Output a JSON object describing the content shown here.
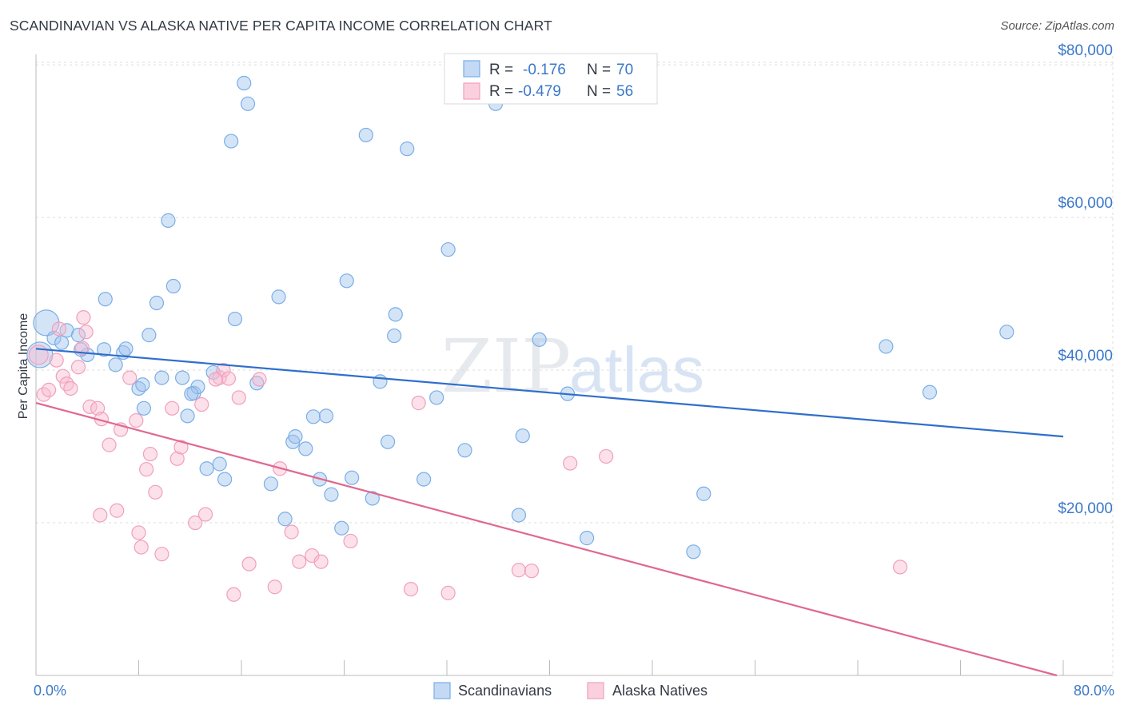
{
  "header": {
    "title": "SCANDINAVIAN VS ALASKA NATIVE PER CAPITA INCOME CORRELATION CHART",
    "source": "Source: ZipAtlas.com"
  },
  "watermark": {
    "zip": "ZIP",
    "atlas": "atlas"
  },
  "legend": {
    "rows": [
      {
        "r_label": "R =",
        "r_value": "-0.176",
        "n_label": "N =",
        "n_value": "70"
      },
      {
        "r_label": "R =",
        "r_value": "-0.479",
        "n_label": "N =",
        "n_value": "56"
      }
    ]
  },
  "chart_data": {
    "type": "scatter",
    "title": "SCANDINAVIAN VS ALASKA NATIVE PER CAPITA INCOME CORRELATION CHART",
    "xlabel": "",
    "ylabel": "Per Capita Income",
    "xlim": [
      0,
      80
    ],
    "ylim": [
      0,
      82000
    ],
    "x_tick_labels": [
      "0.0%",
      "80.0%"
    ],
    "y_ticks": [
      20000,
      40000,
      60000,
      80000
    ],
    "y_tick_labels": [
      "$20,000",
      "$40,000",
      "$60,000",
      "$80,000"
    ],
    "grid": true,
    "legend_position": "top-center",
    "colors": {
      "Scandinavians": "#7aaee6",
      "Alaska Natives": "#f0a0bc",
      "blue_line": "#2f6fcb",
      "pink_line": "#e0688f"
    },
    "series": [
      {
        "name": "Scandinavians",
        "trend": {
          "x": [
            0,
            80
          ],
          "y": [
            42800,
            31300
          ]
        },
        "points": [
          [
            0.3,
            42000
          ],
          [
            0.8,
            46200
          ],
          [
            1.4,
            44200
          ],
          [
            2.4,
            45200
          ],
          [
            2.0,
            43600
          ],
          [
            3.3,
            44600
          ],
          [
            4.0,
            42000
          ],
          [
            3.5,
            42700
          ],
          [
            5.3,
            42700
          ],
          [
            6.2,
            40700
          ],
          [
            5.4,
            49300
          ],
          [
            6.8,
            42300
          ],
          [
            7.0,
            42800
          ],
          [
            8.0,
            37600
          ],
          [
            8.3,
            38100
          ],
          [
            8.4,
            35000
          ],
          [
            8.8,
            44600
          ],
          [
            9.4,
            48800
          ],
          [
            9.8,
            39000
          ],
          [
            10.3,
            59600
          ],
          [
            10.7,
            51000
          ],
          [
            11.4,
            39000
          ],
          [
            11.8,
            34000
          ],
          [
            12.3,
            37000
          ],
          [
            12.6,
            37800
          ],
          [
            13.3,
            27100
          ],
          [
            13.8,
            39700
          ],
          [
            14.3,
            27700
          ],
          [
            14.7,
            25700
          ],
          [
            15.5,
            46700
          ],
          [
            15.2,
            70000
          ],
          [
            16.2,
            77600
          ],
          [
            16.5,
            74900
          ],
          [
            17.2,
            38300
          ],
          [
            18.3,
            25100
          ],
          [
            18.9,
            49600
          ],
          [
            19.4,
            20500
          ],
          [
            20.0,
            30600
          ],
          [
            20.2,
            31300
          ],
          [
            21.0,
            29700
          ],
          [
            21.6,
            33900
          ],
          [
            22.1,
            25700
          ],
          [
            22.6,
            34000
          ],
          [
            23.0,
            23700
          ],
          [
            23.8,
            19300
          ],
          [
            24.2,
            51700
          ],
          [
            24.6,
            25900
          ],
          [
            25.7,
            70800
          ],
          [
            26.2,
            23200
          ],
          [
            26.8,
            38500
          ],
          [
            27.4,
            30600
          ],
          [
            27.9,
            44500
          ],
          [
            28.0,
            47300
          ],
          [
            28.9,
            69000
          ],
          [
            30.2,
            25700
          ],
          [
            31.2,
            36400
          ],
          [
            32.1,
            55800
          ],
          [
            33.4,
            29500
          ],
          [
            35.8,
            74900
          ],
          [
            37.6,
            21000
          ],
          [
            37.9,
            31400
          ],
          [
            39.2,
            44000
          ],
          [
            41.4,
            36900
          ],
          [
            42.9,
            18000
          ],
          [
            51.2,
            16200
          ],
          [
            52.0,
            23800
          ],
          [
            66.2,
            43100
          ],
          [
            69.6,
            37100
          ],
          [
            75.6,
            45000
          ],
          [
            12.1,
            36900
          ]
        ]
      },
      {
        "name": "Alaska Natives",
        "trend": {
          "x": [
            0,
            79.5
          ],
          "y": [
            35700,
            0
          ]
        },
        "points": [
          [
            0.2,
            42000
          ],
          [
            0.6,
            36800
          ],
          [
            1.0,
            37400
          ],
          [
            1.6,
            41300
          ],
          [
            1.8,
            45400
          ],
          [
            2.1,
            39200
          ],
          [
            2.4,
            38200
          ],
          [
            2.7,
            37600
          ],
          [
            3.3,
            40400
          ],
          [
            3.6,
            42900
          ],
          [
            3.7,
            46900
          ],
          [
            3.9,
            45000
          ],
          [
            4.2,
            35200
          ],
          [
            4.8,
            35000
          ],
          [
            5.1,
            33600
          ],
          [
            5.0,
            21000
          ],
          [
            5.7,
            30200
          ],
          [
            6.3,
            21600
          ],
          [
            6.6,
            32200
          ],
          [
            7.3,
            39000
          ],
          [
            7.8,
            33400
          ],
          [
            8.0,
            18700
          ],
          [
            8.2,
            16800
          ],
          [
            8.6,
            27000
          ],
          [
            8.9,
            29000
          ],
          [
            9.3,
            24000
          ],
          [
            9.8,
            15900
          ],
          [
            10.6,
            35000
          ],
          [
            11.0,
            28400
          ],
          [
            11.3,
            29900
          ],
          [
            12.4,
            20000
          ],
          [
            12.9,
            35500
          ],
          [
            13.2,
            21100
          ],
          [
            14.3,
            39000
          ],
          [
            14.6,
            40000
          ],
          [
            15.0,
            38900
          ],
          [
            15.4,
            10600
          ],
          [
            15.8,
            36400
          ],
          [
            16.6,
            14600
          ],
          [
            17.4,
            38800
          ],
          [
            18.6,
            11600
          ],
          [
            19.0,
            27100
          ],
          [
            19.9,
            18800
          ],
          [
            20.5,
            14900
          ],
          [
            21.5,
            15700
          ],
          [
            22.2,
            14900
          ],
          [
            24.5,
            17600
          ],
          [
            29.2,
            11300
          ],
          [
            29.8,
            35700
          ],
          [
            32.1,
            10800
          ],
          [
            37.6,
            13800
          ],
          [
            38.6,
            13700
          ],
          [
            41.6,
            27800
          ],
          [
            44.4,
            28700
          ],
          [
            67.3,
            14200
          ],
          [
            14.0,
            38800
          ]
        ]
      }
    ]
  },
  "bottom_legend": {
    "items": [
      "Scandinavians",
      "Alaska Natives"
    ]
  }
}
